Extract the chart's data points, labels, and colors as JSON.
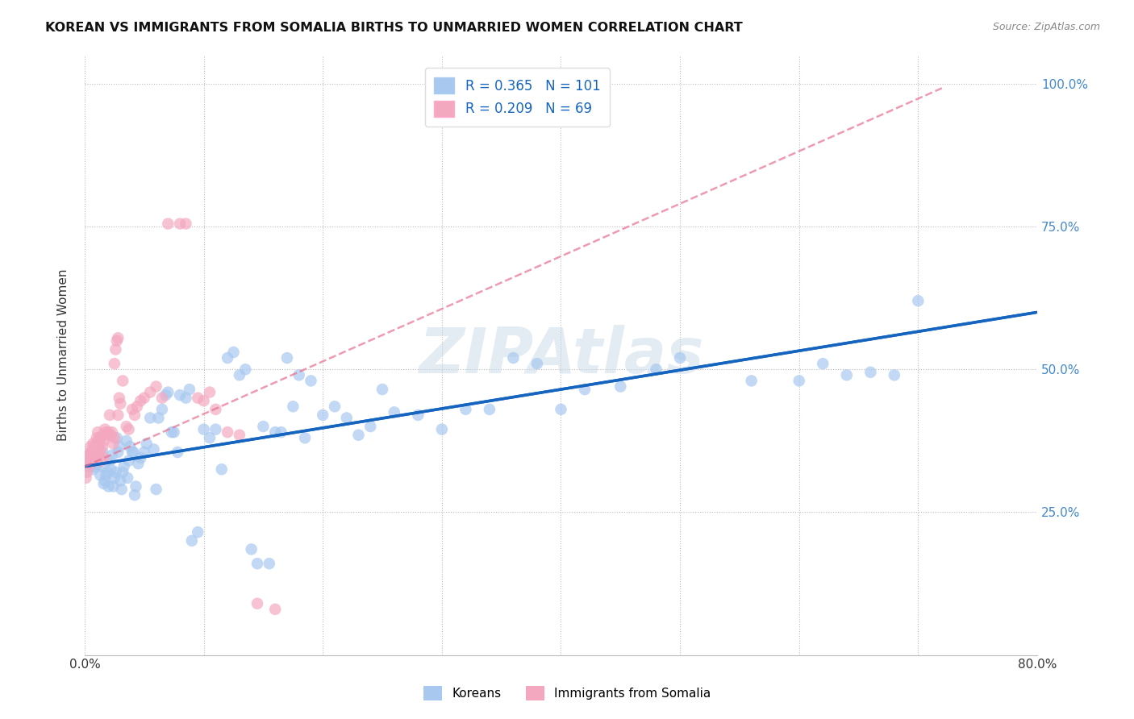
{
  "title": "KOREAN VS IMMIGRANTS FROM SOMALIA BIRTHS TO UNMARRIED WOMEN CORRELATION CHART",
  "source": "Source: ZipAtlas.com",
  "xlabel": "",
  "ylabel": "Births to Unmarried Women",
  "xlim": [
    0.0,
    0.8
  ],
  "ylim": [
    0.0,
    1.05
  ],
  "yticks": [
    0.25,
    0.5,
    0.75,
    1.0
  ],
  "ytick_labels": [
    "25.0%",
    "50.0%",
    "75.0%",
    "100.0%"
  ],
  "xticks": [
    0.0,
    0.1,
    0.2,
    0.3,
    0.4,
    0.5,
    0.6,
    0.7,
    0.8
  ],
  "xtick_labels": [
    "0.0%",
    "",
    "",
    "",
    "",
    "",
    "",
    "",
    "80.0%"
  ],
  "korean_R": 0.365,
  "korean_N": 101,
  "somalia_R": 0.209,
  "somalia_N": 69,
  "korean_color": "#A8C8F0",
  "somalia_color": "#F4A8C0",
  "trend_korean_color": "#1565C0",
  "trend_somalia_color": "#E87090",
  "watermark": "ZIPAtlas",
  "legend_label_korean": "Koreans",
  "legend_label_somalia": "Immigrants from Somalia",
  "background_color": "#ffffff",
  "korean_trend_x0": 0.0,
  "korean_trend_y0": 0.33,
  "korean_trend_x1": 0.8,
  "korean_trend_y1": 0.6,
  "somalia_trend_x0": 0.0,
  "somalia_trend_y0": 0.33,
  "somalia_trend_x1": 0.25,
  "somalia_trend_y1": 0.56,
  "korean_x": [
    0.003,
    0.005,
    0.006,
    0.007,
    0.008,
    0.009,
    0.01,
    0.011,
    0.012,
    0.013,
    0.014,
    0.015,
    0.016,
    0.017,
    0.018,
    0.019,
    0.02,
    0.021,
    0.022,
    0.023,
    0.024,
    0.025,
    0.026,
    0.027,
    0.028,
    0.029,
    0.03,
    0.031,
    0.032,
    0.033,
    0.035,
    0.036,
    0.037,
    0.038,
    0.04,
    0.041,
    0.042,
    0.043,
    0.045,
    0.047,
    0.05,
    0.052,
    0.055,
    0.058,
    0.06,
    0.062,
    0.065,
    0.068,
    0.07,
    0.073,
    0.075,
    0.078,
    0.08,
    0.085,
    0.088,
    0.09,
    0.095,
    0.1,
    0.105,
    0.11,
    0.115,
    0.12,
    0.125,
    0.13,
    0.135,
    0.14,
    0.145,
    0.15,
    0.155,
    0.16,
    0.165,
    0.17,
    0.175,
    0.18,
    0.185,
    0.19,
    0.2,
    0.21,
    0.22,
    0.23,
    0.24,
    0.25,
    0.26,
    0.28,
    0.3,
    0.32,
    0.34,
    0.36,
    0.38,
    0.4,
    0.42,
    0.45,
    0.48,
    0.5,
    0.56,
    0.6,
    0.62,
    0.64,
    0.66,
    0.68,
    0.7
  ],
  "korean_y": [
    0.33,
    0.335,
    0.33,
    0.325,
    0.34,
    0.33,
    0.345,
    0.335,
    0.35,
    0.315,
    0.33,
    0.355,
    0.3,
    0.305,
    0.315,
    0.32,
    0.295,
    0.34,
    0.325,
    0.35,
    0.295,
    0.31,
    0.32,
    0.38,
    0.355,
    0.365,
    0.305,
    0.29,
    0.32,
    0.33,
    0.375,
    0.31,
    0.34,
    0.365,
    0.355,
    0.355,
    0.28,
    0.295,
    0.335,
    0.345,
    0.355,
    0.37,
    0.415,
    0.36,
    0.29,
    0.415,
    0.43,
    0.455,
    0.46,
    0.39,
    0.39,
    0.355,
    0.455,
    0.45,
    0.465,
    0.2,
    0.215,
    0.395,
    0.38,
    0.395,
    0.325,
    0.52,
    0.53,
    0.49,
    0.5,
    0.185,
    0.16,
    0.4,
    0.16,
    0.39,
    0.39,
    0.52,
    0.435,
    0.49,
    0.38,
    0.48,
    0.42,
    0.435,
    0.415,
    0.385,
    0.4,
    0.465,
    0.425,
    0.42,
    0.395,
    0.43,
    0.43,
    0.52,
    0.51,
    0.43,
    0.465,
    0.47,
    0.5,
    0.52,
    0.48,
    0.48,
    0.51,
    0.49,
    0.495,
    0.49,
    0.62
  ],
  "somalia_x": [
    0.001,
    0.002,
    0.002,
    0.003,
    0.003,
    0.004,
    0.004,
    0.005,
    0.005,
    0.005,
    0.006,
    0.006,
    0.007,
    0.007,
    0.008,
    0.008,
    0.009,
    0.009,
    0.01,
    0.01,
    0.011,
    0.011,
    0.012,
    0.012,
    0.013,
    0.013,
    0.014,
    0.015,
    0.015,
    0.016,
    0.016,
    0.017,
    0.018,
    0.019,
    0.02,
    0.021,
    0.022,
    0.023,
    0.024,
    0.025,
    0.025,
    0.026,
    0.027,
    0.028,
    0.028,
    0.029,
    0.03,
    0.032,
    0.035,
    0.037,
    0.04,
    0.042,
    0.044,
    0.047,
    0.05,
    0.055,
    0.06,
    0.065,
    0.07,
    0.08,
    0.085,
    0.095,
    0.1,
    0.105,
    0.11,
    0.12,
    0.13,
    0.145,
    0.16
  ],
  "somalia_y": [
    0.31,
    0.34,
    0.32,
    0.35,
    0.33,
    0.35,
    0.345,
    0.355,
    0.335,
    0.365,
    0.34,
    0.355,
    0.34,
    0.37,
    0.345,
    0.365,
    0.355,
    0.34,
    0.35,
    0.38,
    0.375,
    0.39,
    0.37,
    0.36,
    0.355,
    0.38,
    0.34,
    0.385,
    0.365,
    0.375,
    0.345,
    0.395,
    0.39,
    0.385,
    0.39,
    0.42,
    0.385,
    0.39,
    0.37,
    0.38,
    0.51,
    0.535,
    0.55,
    0.555,
    0.42,
    0.45,
    0.44,
    0.48,
    0.4,
    0.395,
    0.43,
    0.42,
    0.435,
    0.445,
    0.45,
    0.46,
    0.47,
    0.45,
    0.755,
    0.755,
    0.755,
    0.45,
    0.445,
    0.46,
    0.43,
    0.39,
    0.385,
    0.09,
    0.08
  ]
}
